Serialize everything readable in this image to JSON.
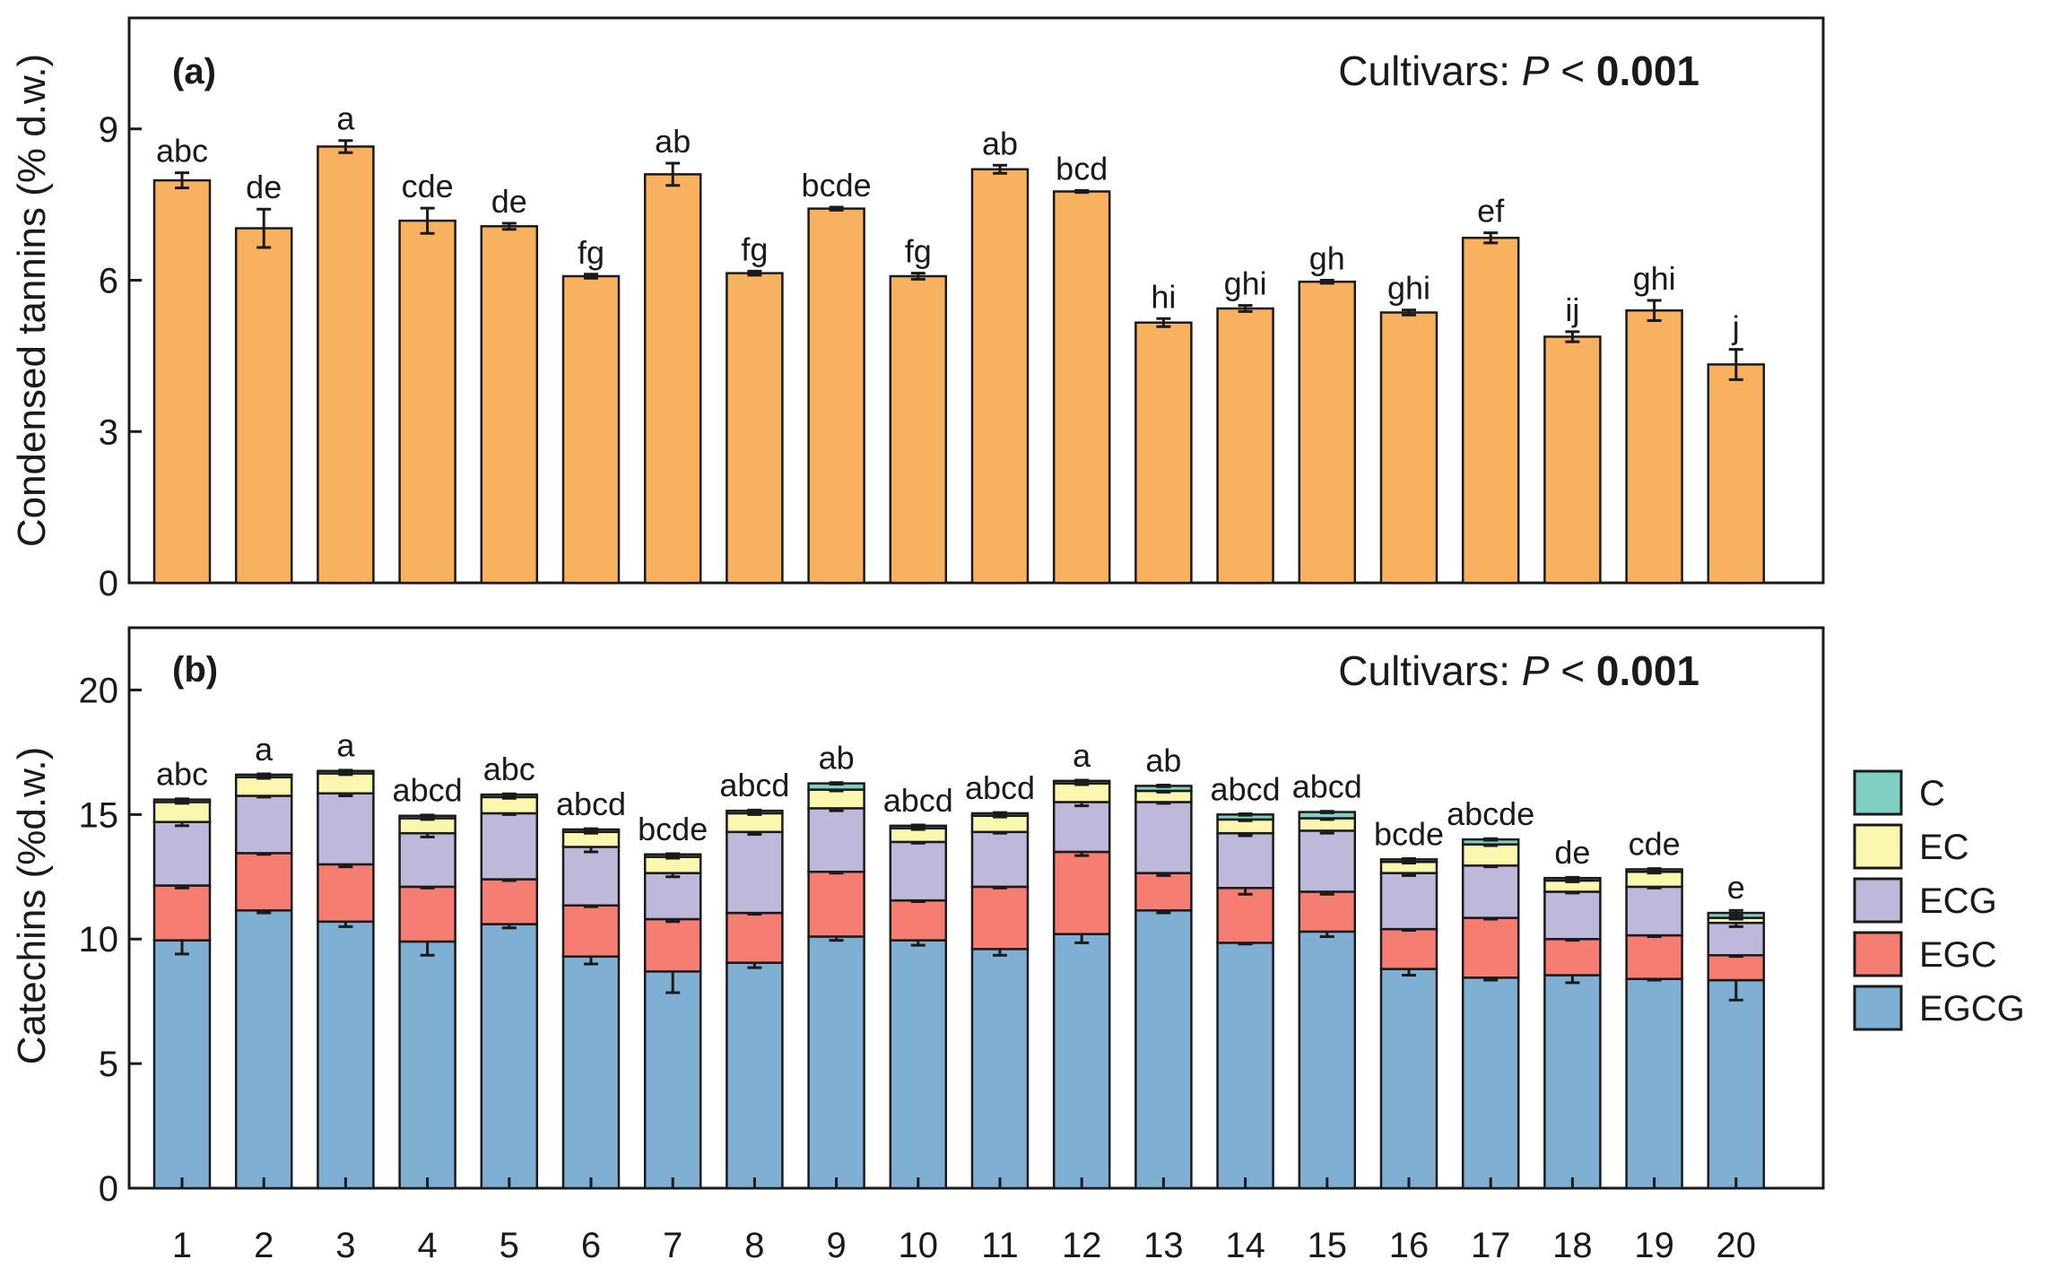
{
  "colors": {
    "tannin": "#F8B25F",
    "C": "#7FD0C2",
    "EC": "#FBF7AE",
    "ECG": "#BEB8DA",
    "EGC": "#F67D72",
    "EGCG": "#7FAFD3"
  },
  "chart_data": [
    {
      "type": "bar",
      "panel_label": "(a)",
      "annotation": {
        "prefix": "Cultivars: ",
        "italic": "P",
        "op": " < ",
        "bold": "0.001"
      },
      "ylabel": "Condensed tannins (% d.w.)",
      "xlabel": "",
      "ylim": [
        0,
        11.2
      ],
      "yticks": [
        0,
        3,
        6,
        9
      ],
      "categories": [
        "1",
        "2",
        "3",
        "4",
        "5",
        "6",
        "7",
        "8",
        "9",
        "10",
        "11",
        "12",
        "13",
        "14",
        "15",
        "16",
        "17",
        "18",
        "19",
        "20"
      ],
      "values": [
        7.98,
        7.03,
        8.65,
        7.18,
        7.07,
        6.08,
        8.1,
        6.14,
        7.42,
        6.08,
        8.2,
        7.76,
        5.16,
        5.44,
        5.97,
        5.36,
        6.84,
        4.88,
        5.4,
        4.33
      ],
      "errors": [
        0.15,
        0.38,
        0.12,
        0.25,
        0.06,
        0.04,
        0.22,
        0.04,
        0.03,
        0.06,
        0.08,
        0.02,
        0.08,
        0.06,
        0.03,
        0.05,
        0.1,
        0.1,
        0.2,
        0.3
      ],
      "letters": [
        "abc",
        "de",
        "a",
        "cde",
        "de",
        "fg",
        "ab",
        "fg",
        "bcde",
        "fg",
        "ab",
        "bcd",
        "hi",
        "ghi",
        "gh",
        "ghi",
        "ef",
        "ij",
        "ghi",
        "j"
      ]
    },
    {
      "type": "bar",
      "stacked": true,
      "panel_label": "(b)",
      "annotation": {
        "prefix": "Cultivars: ",
        "italic": "P",
        "op": " < ",
        "bold": "0.001"
      },
      "ylabel": "Catechins (%d.w.)",
      "xlabel": "",
      "ylim": [
        0,
        22.5
      ],
      "yticks": [
        0,
        5,
        10,
        15,
        20
      ],
      "categories": [
        "1",
        "2",
        "3",
        "4",
        "5",
        "6",
        "7",
        "8",
        "9",
        "10",
        "11",
        "12",
        "13",
        "14",
        "15",
        "16",
        "17",
        "18",
        "19",
        "20"
      ],
      "legend": [
        "C",
        "EC",
        "ECG",
        "EGC",
        "EGCG"
      ],
      "legend_position": "right",
      "series": [
        {
          "name": "EGCG",
          "values": [
            9.95,
            11.15,
            10.7,
            9.9,
            10.6,
            9.3,
            8.7,
            9.05,
            10.1,
            9.95,
            9.6,
            10.2,
            11.15,
            9.85,
            10.3,
            8.8,
            8.45,
            8.55,
            8.4,
            8.35
          ],
          "errors": [
            0.55,
            0.1,
            0.2,
            0.55,
            0.15,
            0.3,
            0.85,
            0.2,
            0.15,
            0.2,
            0.25,
            0.35,
            0.1,
            0.05,
            0.2,
            0.25,
            0.1,
            0.3,
            0.05,
            0.8
          ]
        },
        {
          "name": "EGC",
          "values": [
            2.2,
            2.3,
            2.3,
            2.2,
            1.8,
            2.05,
            2.1,
            2.0,
            2.6,
            1.6,
            2.5,
            3.3,
            1.5,
            2.2,
            1.6,
            1.6,
            2.4,
            1.45,
            1.75,
            1.0
          ],
          "errors": [
            0.1,
            0.05,
            0.1,
            0.05,
            0.05,
            0.05,
            0.1,
            0.05,
            0.05,
            0.05,
            0.05,
            0.15,
            0.1,
            0.25,
            0.1,
            0.05,
            0.05,
            0.05,
            0.05,
            0.05
          ]
        },
        {
          "name": "ECG",
          "values": [
            2.55,
            2.3,
            2.85,
            2.15,
            2.65,
            2.35,
            1.85,
            3.25,
            2.55,
            2.35,
            2.2,
            2.0,
            2.85,
            2.2,
            2.45,
            2.25,
            2.1,
            1.9,
            1.95,
            1.3
          ],
          "errors": [
            0.15,
            0.05,
            0.1,
            0.15,
            0.05,
            0.2,
            0.15,
            0.1,
            0.1,
            0.05,
            0.05,
            0.15,
            0.05,
            0.1,
            0.1,
            0.1,
            0.05,
            0.05,
            0.05,
            0.15
          ]
        },
        {
          "name": "EC",
          "values": [
            0.8,
            0.75,
            0.8,
            0.6,
            0.65,
            0.6,
            0.65,
            0.75,
            0.75,
            0.55,
            0.65,
            0.75,
            0.45,
            0.55,
            0.5,
            0.45,
            0.85,
            0.45,
            0.6,
            0.2
          ],
          "errors": [
            0.05,
            0.05,
            0.05,
            0.05,
            0.05,
            0.05,
            0.05,
            0.05,
            0.05,
            0.05,
            0.05,
            0.05,
            0.05,
            0.05,
            0.05,
            0.05,
            0.05,
            0.05,
            0.05,
            0.05
          ]
        },
        {
          "name": "C",
          "values": [
            0.1,
            0.1,
            0.1,
            0.1,
            0.1,
            0.1,
            0.1,
            0.1,
            0.25,
            0.1,
            0.1,
            0.1,
            0.2,
            0.2,
            0.25,
            0.1,
            0.2,
            0.1,
            0.1,
            0.2
          ],
          "errors": [
            0.03,
            0.03,
            0.03,
            0.03,
            0.03,
            0.03,
            0.03,
            0.03,
            0.03,
            0.03,
            0.03,
            0.03,
            0.03,
            0.03,
            0.03,
            0.03,
            0.03,
            0.03,
            0.03,
            0.1
          ]
        }
      ],
      "letters": [
        "abc",
        "a",
        "a",
        "abcd",
        "abc",
        "abcd",
        "bcde",
        "abcd",
        "ab",
        "abcd",
        "abcd",
        "a",
        "ab",
        "abcd",
        "abcd",
        "bcde",
        "abcde",
        "de",
        "cde",
        "e"
      ]
    }
  ]
}
